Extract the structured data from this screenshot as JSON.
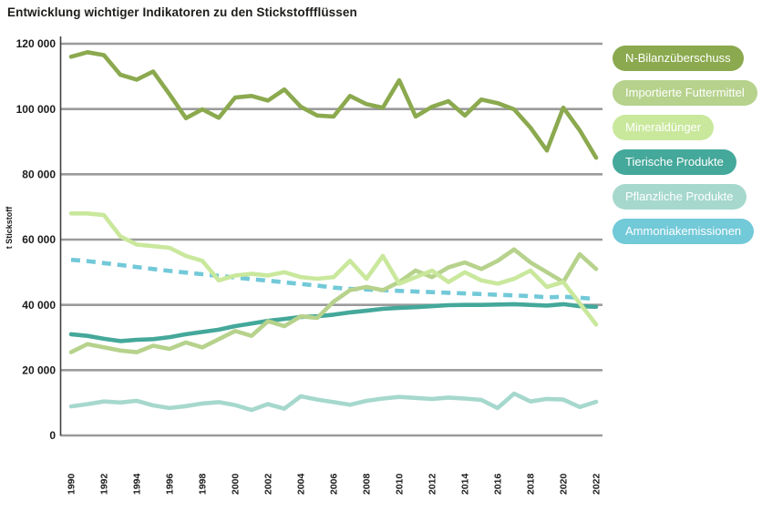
{
  "title": "Entwicklung wichtiger Indikatoren zu den Stickstoffflüssen",
  "colors": {
    "background": "#ffffff",
    "gridline": "#9b9b9b",
    "axis": "#3f3f3e",
    "text": "#1a1a1a",
    "legend_text": "#ffffff"
  },
  "chart_data": {
    "type": "line",
    "title": "Entwicklung wichtiger Indikatoren zu den Stickstoffflüssen",
    "xlabel": "",
    "ylabel": "t Stickstoff",
    "ylim": [
      0,
      120000
    ],
    "grid": "horizontal",
    "legend_position": "right",
    "y_tick_values": [
      0,
      20000,
      40000,
      60000,
      80000,
      100000,
      120000
    ],
    "y_tick_labels": [
      "0",
      "20 000",
      "40 000",
      "60 000",
      "80 000",
      "100 000",
      "120 000"
    ],
    "x": [
      1990,
      1991,
      1992,
      1993,
      1994,
      1995,
      1996,
      1997,
      1998,
      1999,
      2000,
      2001,
      2002,
      2003,
      2004,
      2005,
      2006,
      2007,
      2008,
      2009,
      2010,
      2011,
      2012,
      2013,
      2014,
      2015,
      2016,
      2017,
      2018,
      2019,
      2020,
      2021,
      2022
    ],
    "x_tick_labels": [
      "1990",
      "1992",
      "1994",
      "1996",
      "1998",
      "2000",
      "2002",
      "2004",
      "2006",
      "2008",
      "2010",
      "2012",
      "2014",
      "2016",
      "2018",
      "2020",
      "2022"
    ],
    "series": [
      {
        "name": "N-Bilanzüberschuss",
        "color": "#8ba94e",
        "style": "solid",
        "z": 1,
        "values": [
          116000,
          117400,
          116500,
          110500,
          109000,
          111500,
          104500,
          97200,
          99900,
          97300,
          103500,
          104000,
          102600,
          106000,
          100700,
          98000,
          97700,
          104000,
          101500,
          100400,
          108800,
          97700,
          100700,
          102400,
          98000,
          102900,
          101800,
          99900,
          94300,
          87300,
          100400,
          93500,
          85100
        ]
      },
      {
        "name": "Importierte Futtermittel",
        "color": "#b6d28c",
        "style": "solid",
        "z": 4,
        "values": [
          25500,
          28000,
          27000,
          26000,
          25500,
          27500,
          26500,
          28500,
          27000,
          29500,
          32000,
          30500,
          35000,
          33500,
          36500,
          36000,
          41000,
          44500,
          45500,
          44500,
          47000,
          50500,
          48500,
          51500,
          53000,
          51000,
          53500,
          57000,
          53000,
          50000,
          47000,
          55500,
          51000
        ]
      },
      {
        "name": "Mineraldünger",
        "color": "#c9e89c",
        "style": "solid",
        "z": 5,
        "values": [
          68000,
          68000,
          67500,
          61000,
          58500,
          58000,
          57500,
          55000,
          53500,
          47500,
          49000,
          49500,
          49000,
          50000,
          48500,
          48000,
          48500,
          53500,
          48000,
          55000,
          46500,
          48500,
          50500,
          47000,
          50000,
          47500,
          46500,
          48000,
          50500,
          45500,
          47000,
          40500,
          34000
        ]
      },
      {
        "name": "Tierische Produkte",
        "color": "#44a89a",
        "style": "solid",
        "z": 3,
        "values": [
          31000,
          30500,
          29600,
          28900,
          29300,
          29500,
          30100,
          31000,
          31700,
          32400,
          33500,
          34300,
          35100,
          35700,
          36300,
          36500,
          37000,
          37700,
          38200,
          38800,
          39100,
          39300,
          39600,
          39900,
          40000,
          40000,
          40100,
          40200,
          40000,
          39800,
          40200,
          39600,
          39400
        ]
      },
      {
        "name": "Pflanzliche Produkte",
        "color": "#a6d8cd",
        "style": "solid",
        "z": 2,
        "values": [
          8900,
          9600,
          10400,
          10100,
          10600,
          9200,
          8400,
          9000,
          9800,
          10200,
          9300,
          7800,
          9600,
          8200,
          12000,
          11000,
          10200,
          9400,
          10600,
          11300,
          11800,
          11500,
          11200,
          11600,
          11300,
          10900,
          8400,
          12800,
          10400,
          11200,
          11000,
          8700,
          10300
        ]
      },
      {
        "name": "Ammoniakemissionen",
        "color": "#72c9d8",
        "style": "dashed",
        "z": 0,
        "values": [
          53800,
          53400,
          52800,
          52200,
          51600,
          51000,
          50400,
          49900,
          49400,
          48900,
          48400,
          47900,
          47400,
          46900,
          46400,
          45900,
          45300,
          44900,
          44700,
          44500,
          44300,
          44100,
          43900,
          43700,
          43500,
          43300,
          43100,
          42900,
          42700,
          42300,
          42500,
          42200,
          41800
        ]
      }
    ]
  }
}
